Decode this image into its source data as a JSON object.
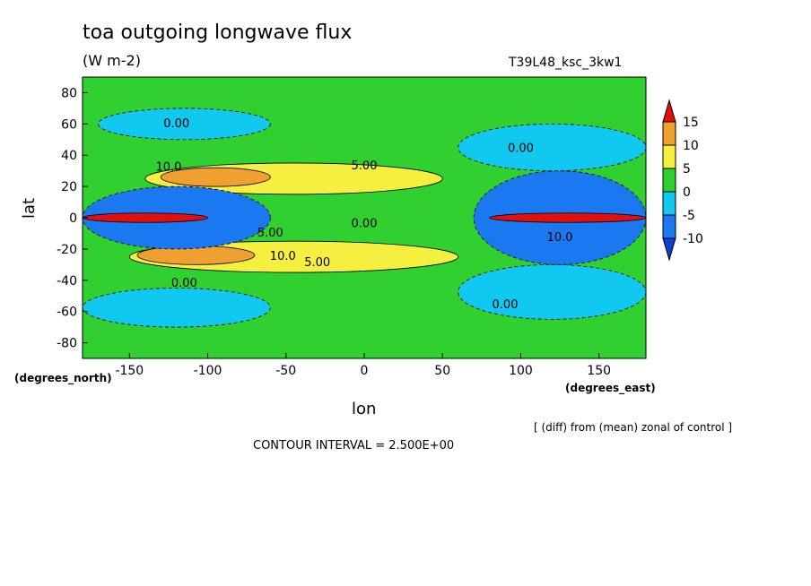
{
  "chart_data": {
    "type": "heatmap",
    "title": "toa outgoing longwave flux",
    "units": "(W m-2)",
    "run_label": "T39L48_ksc_3kw1",
    "xlabel": "lon",
    "ylabel": "lat",
    "x_units_label": "(degrees_east)",
    "y_units_label": "(degrees_north)",
    "xlim": [
      -180,
      180
    ],
    "ylim": [
      -90,
      90
    ],
    "x_ticks": [
      -150,
      -100,
      -50,
      0,
      50,
      100,
      150
    ],
    "y_ticks": [
      80,
      60,
      40,
      20,
      0,
      -20,
      -40,
      -60,
      -80
    ],
    "x_tick_labels": [
      "-150",
      "-100",
      "-50",
      "0",
      "50",
      "100",
      "150"
    ],
    "y_tick_labels": [
      "80",
      "60",
      "40",
      "20",
      "0",
      "-20",
      "-40",
      "-60",
      "-80"
    ],
    "colorbar": {
      "levels": [
        15,
        10,
        5,
        0,
        -5,
        -10
      ],
      "labels": [
        "15",
        "10",
        "5",
        "0",
        "-5",
        "-10"
      ],
      "colors": [
        "#e01010",
        "#f0a030",
        "#f5f040",
        "#30d030",
        "#10c8f0",
        "#1a78f0",
        "#1040d0"
      ],
      "extend": "both"
    },
    "contour_labels": [
      {
        "text": "0.00",
        "lon": -120,
        "lat": 58
      },
      {
        "text": "10.0",
        "lon": -125,
        "lat": 30
      },
      {
        "text": "5.00",
        "lon": 0,
        "lat": 31
      },
      {
        "text": "0.00",
        "lon": 0,
        "lat": -6
      },
      {
        "text": "10.0",
        "lon": -52,
        "lat": -27
      },
      {
        "text": "5.00",
        "lon": -30,
        "lat": -31
      },
      {
        "text": "0.00",
        "lon": -115,
        "lat": -44
      },
      {
        "text": "0.00",
        "lon": 100,
        "lat": 42
      },
      {
        "text": "0.00",
        "lon": 90,
        "lat": -58
      },
      {
        "text": "5.00",
        "lon": -60,
        "lat": -12
      },
      {
        "text": "10.0",
        "lon": 125,
        "lat": -15
      }
    ],
    "regions": [
      {
        "name": "background",
        "value": 2.5
      },
      {
        "name": "north-polar-cyan",
        "value": -3,
        "lon": [
          -170,
          -60
        ],
        "lat": [
          50,
          70
        ]
      },
      {
        "name": "north-subtropical-yellow",
        "value": 7.5,
        "lon": [
          -140,
          50
        ],
        "lat": [
          15,
          35
        ]
      },
      {
        "name": "north-subtropical-orange",
        "value": 12,
        "lon": [
          -130,
          -60
        ],
        "lat": [
          20,
          32
        ]
      },
      {
        "name": "south-subtropical-yellow",
        "value": 7.5,
        "lon": [
          -150,
          60
        ],
        "lat": [
          -35,
          -15
        ]
      },
      {
        "name": "south-subtropical-orange",
        "value": 12,
        "lon": [
          -145,
          -70
        ],
        "lat": [
          -30,
          -18
        ]
      },
      {
        "name": "west-tropics-blue",
        "value": -10,
        "lon": [
          -180,
          -60
        ],
        "lat": [
          -20,
          20
        ]
      },
      {
        "name": "west-equator-red",
        "value": 16,
        "lon": [
          -180,
          -100
        ],
        "lat": [
          -3,
          3
        ]
      },
      {
        "name": "east-tropics-blue",
        "value": -10,
        "lon": [
          70,
          180
        ],
        "lat": [
          -30,
          30
        ]
      },
      {
        "name": "east-equator-red",
        "value": 16,
        "lon": [
          80,
          180
        ],
        "lat": [
          -3,
          3
        ]
      },
      {
        "name": "east-north-cyan",
        "value": -3,
        "lon": [
          60,
          180
        ],
        "lat": [
          30,
          60
        ]
      },
      {
        "name": "south-polar-cyan",
        "value": -3,
        "lon": [
          -180,
          -60
        ],
        "lat": [
          -70,
          -45
        ]
      },
      {
        "name": "south-east-cyan",
        "value": -3,
        "lon": [
          60,
          180
        ],
        "lat": [
          -65,
          -30
        ]
      }
    ]
  },
  "footer": {
    "note": "[ (diff) from (mean) zonal of control ]",
    "contour_interval": "CONTOUR INTERVAL = 2.500E+00"
  }
}
